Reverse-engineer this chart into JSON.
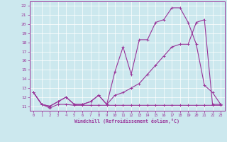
{
  "xlabel": "Windchill (Refroidissement éolien,°C)",
  "bg_color": "#cce8ee",
  "grid_color": "#aacccc",
  "line_color": "#993399",
  "xlim": [
    -0.5,
    23.5
  ],
  "ylim": [
    10.5,
    22.5
  ],
  "xticks": [
    0,
    1,
    2,
    3,
    4,
    5,
    6,
    7,
    8,
    9,
    10,
    11,
    12,
    13,
    14,
    15,
    16,
    17,
    18,
    19,
    20,
    21,
    22,
    23
  ],
  "yticks": [
    11,
    12,
    13,
    14,
    15,
    16,
    17,
    18,
    19,
    20,
    21,
    22
  ],
  "series1_x": [
    0,
    1,
    2,
    3,
    4,
    5,
    6,
    7,
    8,
    9,
    10,
    11,
    12,
    13,
    14,
    15,
    16,
    17,
    18,
    19,
    20,
    21,
    22,
    23
  ],
  "series1_y": [
    12.5,
    11.2,
    10.8,
    11.2,
    11.2,
    11.1,
    11.1,
    11.1,
    11.1,
    11.1,
    11.1,
    11.1,
    11.1,
    11.1,
    11.1,
    11.1,
    11.1,
    11.1,
    11.1,
    11.1,
    11.1,
    11.1,
    11.1,
    11.1
  ],
  "series2_x": [
    0,
    1,
    2,
    3,
    4,
    5,
    6,
    7,
    8,
    9,
    10,
    11,
    12,
    13,
    14,
    15,
    16,
    17,
    18,
    19,
    20,
    21,
    22,
    23
  ],
  "series2_y": [
    12.5,
    11.2,
    11.0,
    11.5,
    12.0,
    11.2,
    11.2,
    11.5,
    12.2,
    11.2,
    14.8,
    17.5,
    14.5,
    18.3,
    18.3,
    20.2,
    20.5,
    21.8,
    21.8,
    20.2,
    17.8,
    13.3,
    12.5,
    11.2
  ],
  "series3_x": [
    0,
    1,
    2,
    3,
    4,
    5,
    6,
    7,
    8,
    9,
    10,
    11,
    12,
    13,
    14,
    15,
    16,
    17,
    18,
    19,
    20,
    21,
    22,
    23
  ],
  "series3_y": [
    12.5,
    11.2,
    11.0,
    11.5,
    12.0,
    11.2,
    11.2,
    11.5,
    12.2,
    11.2,
    12.2,
    12.5,
    13.0,
    13.5,
    14.5,
    15.5,
    16.5,
    17.5,
    17.8,
    17.8,
    20.2,
    20.5,
    11.2,
    11.2
  ]
}
